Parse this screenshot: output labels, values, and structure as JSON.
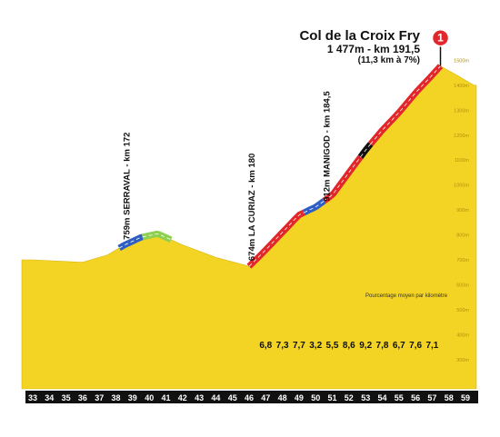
{
  "chart_data": {
    "type": "area",
    "summit": {
      "name": "Col de la Croix Fry",
      "line": "1 477m - km 191,5",
      "sub": "(11,3 km à 7%)",
      "category": "1"
    },
    "km_ticks": [
      "33",
      "34",
      "35",
      "36",
      "37",
      "38",
      "39",
      "40",
      "41",
      "42",
      "43",
      "44",
      "45",
      "46",
      "47",
      "48",
      "49",
      "50",
      "51",
      "52",
      "53",
      "54",
      "55",
      "56",
      "57",
      "58",
      "59"
    ],
    "gradient_note": "Pourcentage moyen par kilomètre",
    "gradients": [
      {
        "km": "47",
        "value": "6,8"
      },
      {
        "km": "48",
        "value": "7,3"
      },
      {
        "km": "49",
        "value": "7,7"
      },
      {
        "km": "50",
        "value": "3,2"
      },
      {
        "km": "51",
        "value": "5,5"
      },
      {
        "km": "52",
        "value": "8,6"
      },
      {
        "km": "53",
        "value": "9,2"
      },
      {
        "km": "54",
        "value": "7,8"
      },
      {
        "km": "55",
        "value": "6,7"
      },
      {
        "km": "56",
        "value": "7,6"
      },
      {
        "km": "57",
        "value": "7,1"
      }
    ],
    "waypoints": [
      {
        "label": "759m SERRAVAL - km 172",
        "km": 38.5,
        "alt": 759
      },
      {
        "label": "674m LA CURIAZ - km 180",
        "km": 46.0,
        "alt": 674
      },
      {
        "label": "912m MANIGOD - km 184,5",
        "km": 50.5,
        "alt": 912
      }
    ],
    "y_ticks": [
      "1500m",
      "1400m",
      "1300m",
      "1200m",
      "1100m",
      "1000m",
      "900m",
      "800m",
      "700m",
      "600m",
      "500m",
      "400m",
      "300m"
    ],
    "profile": [
      {
        "km": 33,
        "alt": 700
      },
      {
        "km": 36,
        "alt": 690
      },
      {
        "km": 37.5,
        "alt": 720
      },
      {
        "km": 38.5,
        "alt": 759
      },
      {
        "km": 39.5,
        "alt": 790
      },
      {
        "km": 40.5,
        "alt": 805
      },
      {
        "km": 42,
        "alt": 760
      },
      {
        "km": 44,
        "alt": 710
      },
      {
        "km": 46,
        "alt": 674
      },
      {
        "km": 47,
        "alt": 740
      },
      {
        "km": 48,
        "alt": 810
      },
      {
        "km": 49,
        "alt": 880
      },
      {
        "km": 50,
        "alt": 912
      },
      {
        "km": 51,
        "alt": 960
      },
      {
        "km": 52,
        "alt": 1050
      },
      {
        "km": 53,
        "alt": 1140
      },
      {
        "km": 54,
        "alt": 1220
      },
      {
        "km": 55,
        "alt": 1290
      },
      {
        "km": 56,
        "alt": 1370
      },
      {
        "km": 57,
        "alt": 1440
      },
      {
        "km": 57.5,
        "alt": 1477
      },
      {
        "km": 58.5,
        "alt": 1440
      },
      {
        "km": 59.5,
        "alt": 1400
      }
    ],
    "segments": [
      {
        "from": 38.2,
        "to": 39.6,
        "color": "#2f5fc4"
      },
      {
        "from": 39.6,
        "to": 41.3,
        "color": "#8ed04f"
      },
      {
        "from": 46,
        "to": 49.3,
        "color": "#e2262a"
      },
      {
        "from": 49.3,
        "to": 50.5,
        "color": "#2f5fc4"
      },
      {
        "from": 50.5,
        "to": 52.7,
        "color": "#e2262a"
      },
      {
        "from": 52.7,
        "to": 53.3,
        "color": "#111111"
      },
      {
        "from": 53.3,
        "to": 57.5,
        "color": "#e2262a"
      }
    ],
    "colors": {
      "fill": "#f3d323",
      "baseline": "#111111"
    }
  }
}
